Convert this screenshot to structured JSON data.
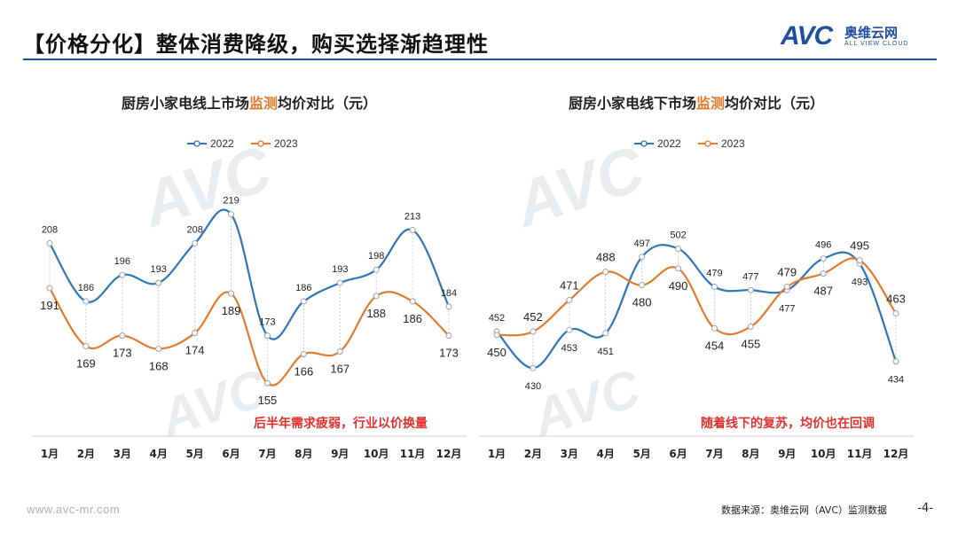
{
  "header": {
    "title": "【价格分化】整体消费降级，购买选择渐趋理性",
    "logo_text": "AVC",
    "logo_cn": "奥维云网",
    "logo_en": "ALL VIEW CLOUD"
  },
  "footer": {
    "website": "www.avc-mr.com",
    "source": "数据来源：奥维云网（AVC）监测数据",
    "page": "-4-"
  },
  "colors": {
    "series_2022": "#2e75b6",
    "series_2023": "#e07b2e",
    "annotation": "#e0312d",
    "highlight": "#e07b2e"
  },
  "chart_data": [
    {
      "type": "line",
      "title_pre": "厨房小家电线上市场",
      "title_hl": "监测",
      "title_post": "均价对比（元）",
      "categories": [
        "1月",
        "2月",
        "3月",
        "4月",
        "5月",
        "6月",
        "7月",
        "8月",
        "9月",
        "10月",
        "11月",
        "12月"
      ],
      "series": [
        {
          "name": "2022",
          "values": [
            208,
            186,
            196,
            193,
            208,
            219,
            173,
            186,
            193,
            198,
            213,
            184
          ]
        },
        {
          "name": "2023",
          "values": [
            191,
            169,
            173,
            168,
            174,
            189,
            155,
            166,
            167,
            188,
            186,
            173
          ]
        }
      ],
      "ylim": [
        145,
        233
      ],
      "annotation": "后半年需求疲弱，行业以价换量",
      "legend": "top-center",
      "smooth": true
    },
    {
      "type": "line",
      "title_pre": "厨房小家电线下市场",
      "title_hl": "监测",
      "title_post": "均价对比（元）",
      "categories": [
        "1月",
        "2月",
        "3月",
        "4月",
        "5月",
        "6月",
        "7月",
        "8月",
        "9月",
        "10月",
        "11月",
        "12月"
      ],
      "series": [
        {
          "name": "2022",
          "values": [
            452,
            430,
            453,
            451,
            497,
            502,
            479,
            477,
            477,
            496,
            493,
            434
          ]
        },
        {
          "name": "2023",
          "values": [
            450,
            452,
            471,
            488,
            480,
            490,
            454,
            455,
            479,
            487,
            495,
            463
          ]
        }
      ],
      "ylim": [
        405,
        545
      ],
      "annotation": "随着线下的复苏，均价也在回调",
      "legend": "top-center",
      "smooth": true
    }
  ]
}
